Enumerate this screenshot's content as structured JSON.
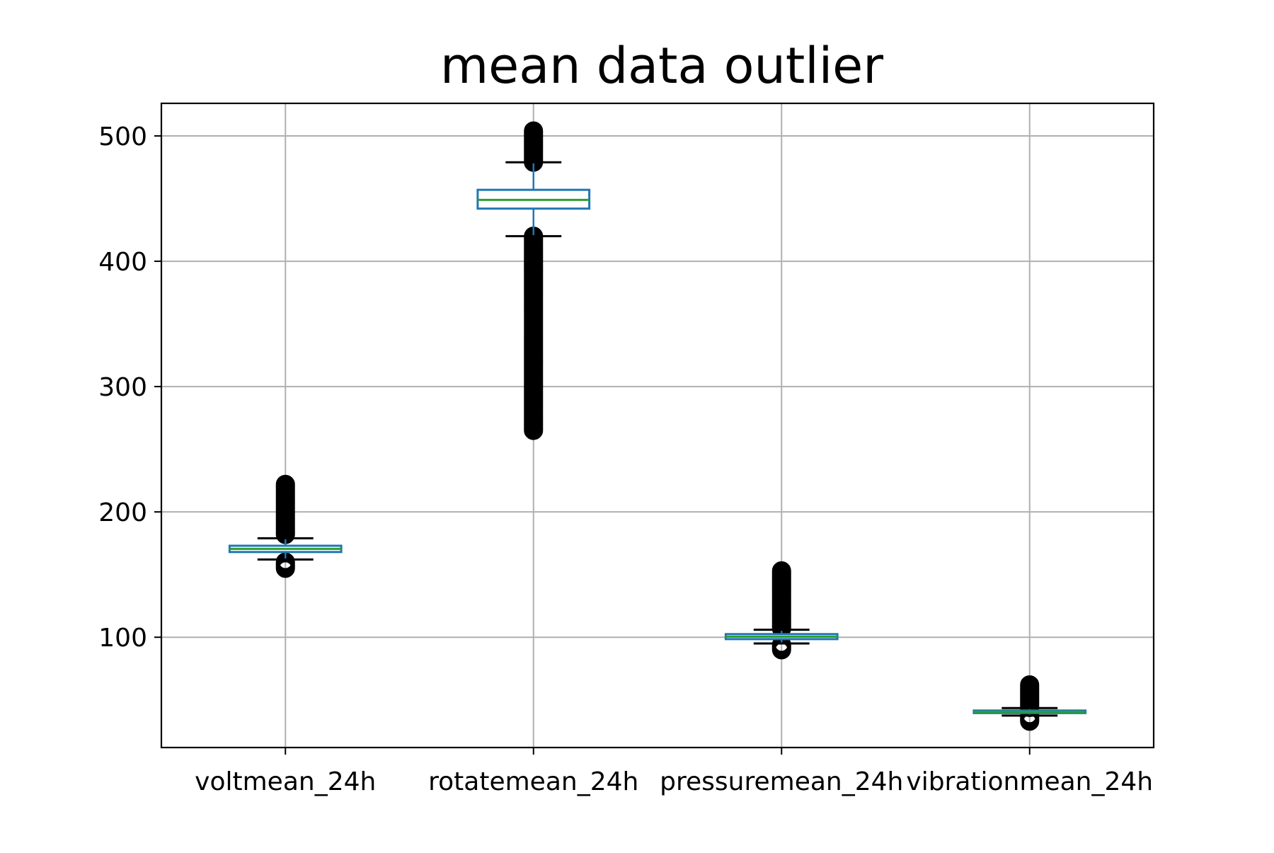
{
  "chart_data": {
    "type": "box",
    "title": "mean data outlier",
    "xlabel": "",
    "ylabel": "",
    "ylim": [
      12,
      526
    ],
    "yticks": [
      100,
      200,
      300,
      400,
      500
    ],
    "grid": true,
    "categories": [
      "voltmean_24h",
      "rotatemean_24h",
      "pressuremean_24h",
      "vibrationmean_24h"
    ],
    "boxes": [
      {
        "category": "voltmean_24h",
        "whisker_low": 162,
        "q1": 168,
        "median": 170.5,
        "q3": 173,
        "whisker_high": 179,
        "outliers_low": [
          155,
          160
        ],
        "outliers_high": [
          182,
          222
        ]
      },
      {
        "category": "rotatemean_24h",
        "whisker_low": 420,
        "q1": 442,
        "median": 449,
        "q3": 457,
        "whisker_high": 479,
        "outliers_low": [
          265,
          420
        ],
        "outliers_high": [
          479,
          504
        ]
      },
      {
        "category": "pressuremean_24h",
        "whisker_low": 95,
        "q1": 98.5,
        "median": 100.5,
        "q3": 102.5,
        "whisker_high": 106,
        "outliers_low": [
          90,
          94
        ],
        "outliers_high": [
          107,
          153
        ]
      },
      {
        "category": "vibrationmean_24h",
        "whisker_low": 37.5,
        "q1": 39.5,
        "median": 40.5,
        "q3": 41.5,
        "whisker_high": 43.5,
        "outliers_low": [
          33,
          37
        ],
        "outliers_high": [
          44,
          62
        ]
      }
    ],
    "colors": {
      "box": "#1f77b4",
      "median": "#2ca02c",
      "whisker": "#000000",
      "grid": "#b0b0b0",
      "flier": "#000000"
    }
  }
}
